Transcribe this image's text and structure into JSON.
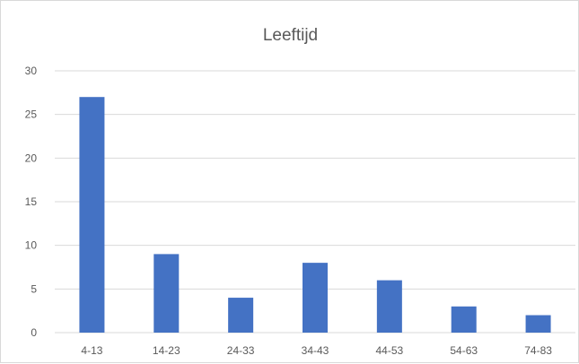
{
  "chart_data": {
    "type": "bar",
    "title": "Leeftijd",
    "xlabel": "",
    "ylabel": "",
    "categories": [
      "4-13",
      "14-23",
      "24-33",
      "34-43",
      "44-53",
      "54-63",
      "74-83"
    ],
    "values": [
      27,
      9,
      4,
      8,
      6,
      3,
      2
    ],
    "ylim": [
      0,
      30
    ],
    "yticks": [
      0,
      5,
      10,
      15,
      20,
      25,
      30
    ],
    "grid": true,
    "legend": "none",
    "bar_color": "#4472C4",
    "grid_color": "#d9d9d9"
  }
}
